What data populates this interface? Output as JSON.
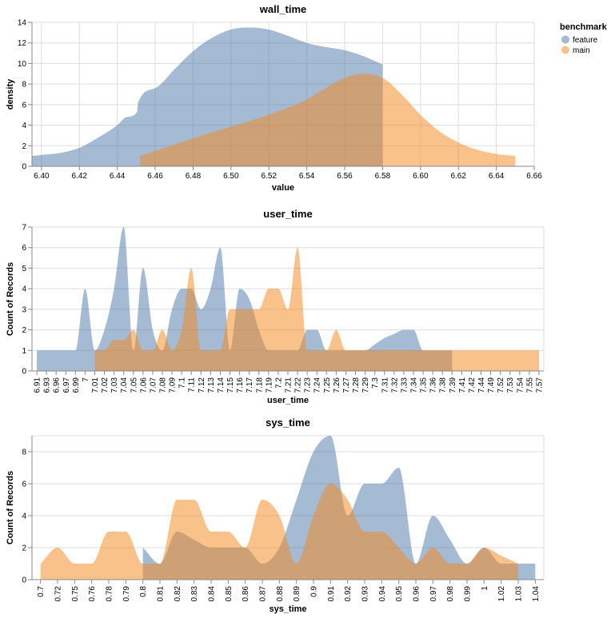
{
  "legend": {
    "title": "benchmark",
    "items": [
      {
        "label": "feature",
        "color": "#4c78a8"
      },
      {
        "label": "main",
        "color": "#f58518"
      }
    ]
  },
  "chart_data": [
    {
      "type": "area",
      "title": "wall_time",
      "xlabel": "value",
      "ylabel": "density",
      "xlim": [
        6.395,
        6.66
      ],
      "ylim": [
        0,
        14
      ],
      "xticks": [
        6.4,
        6.42,
        6.44,
        6.46,
        6.48,
        6.5,
        6.52,
        6.54,
        6.56,
        6.58,
        6.6,
        6.62,
        6.64,
        6.66
      ],
      "xtick_labels": [
        "6.40",
        "6.42",
        "6.44",
        "6.46",
        "6.48",
        "6.50",
        "6.52",
        "6.54",
        "6.56",
        "6.58",
        "6.60",
        "6.62",
        "6.64",
        "6.66"
      ],
      "yticks": [
        0,
        2,
        4,
        6,
        8,
        10,
        12,
        14
      ],
      "grid": true,
      "series": [
        {
          "name": "feature",
          "x": [
            6.395,
            6.4,
            6.41,
            6.42,
            6.43,
            6.44,
            6.445,
            6.4505,
            6.451,
            6.46,
            6.47,
            6.48,
            6.49,
            6.5,
            6.51,
            6.52,
            6.53,
            6.54,
            6.55,
            6.56,
            6.57,
            6.58
          ],
          "y": [
            1.0,
            1.1,
            1.3,
            1.8,
            2.8,
            4.0,
            4.8,
            5.3,
            6.2,
            7.6,
            9.4,
            11.2,
            12.5,
            13.3,
            13.5,
            13.3,
            12.7,
            12.0,
            11.6,
            11.3,
            10.7,
            9.9
          ]
        },
        {
          "name": "main",
          "x": [
            6.452,
            6.47,
            6.49,
            6.51,
            6.53,
            6.54,
            6.55,
            6.56,
            6.57,
            6.58,
            6.59,
            6.6,
            6.61,
            6.62,
            6.63,
            6.64,
            6.65
          ],
          "y": [
            1.0,
            2.1,
            3.3,
            4.4,
            5.7,
            6.5,
            7.6,
            8.6,
            9.0,
            8.6,
            7.0,
            5.0,
            3.4,
            2.3,
            1.6,
            1.2,
            1.0
          ]
        }
      ]
    },
    {
      "type": "area",
      "title": "user_time",
      "xlabel": "user_time",
      "ylabel": "Count of Records",
      "ylim": [
        0,
        7
      ],
      "yticks": [
        0,
        1,
        2,
        3,
        4,
        5,
        6,
        7
      ],
      "grid": true,
      "categories": [
        "6.91",
        "6.93",
        "6.96",
        "6.97",
        "6.99",
        "7",
        "7.01",
        "7.02",
        "7.03",
        "7.04",
        "7.05",
        "7.06",
        "7.07",
        "7.08",
        "7.09",
        "7.1",
        "7.11",
        "7.12",
        "7.13",
        "7.14",
        "7.15",
        "7.16",
        "7.17",
        "7.18",
        "7.19",
        "7.2",
        "7.21",
        "7.22",
        "7.23",
        "7.24",
        "7.25",
        "7.26",
        "7.27",
        "7.28",
        "7.29",
        "7.3",
        "7.31",
        "7.32",
        "7.33",
        "7.34",
        "7.35",
        "7.36",
        "7.38",
        "7.39",
        "7.41",
        "7.42",
        "7.44",
        "7.49",
        "7.52",
        "7.53",
        "7.54",
        "7.55",
        "7.57"
      ],
      "series": [
        {
          "name": "feature",
          "values": [
            1,
            1,
            1,
            1,
            1,
            4,
            1,
            2,
            4,
            7,
            1,
            5,
            2,
            1,
            3,
            4,
            4,
            3,
            4,
            6,
            1,
            4,
            3.5,
            2,
            1,
            1,
            1,
            1,
            2,
            2,
            1,
            1,
            1,
            1,
            1,
            1.3,
            1.6,
            1.8,
            2,
            2,
            1,
            1,
            1,
            1,
            null,
            null,
            null,
            null,
            null,
            null,
            null,
            null,
            null
          ]
        },
        {
          "name": "main",
          "values": [
            null,
            null,
            null,
            null,
            null,
            null,
            1,
            1,
            1.5,
            1.5,
            2,
            1,
            1,
            2,
            1,
            2,
            5,
            1,
            1,
            1,
            3,
            3,
            3,
            3,
            4,
            4,
            3,
            6,
            1,
            1,
            1,
            2,
            1,
            1,
            1,
            1,
            1,
            1,
            1,
            1,
            1,
            1,
            1,
            1,
            1,
            1,
            1,
            1,
            1,
            1,
            1,
            1,
            1
          ]
        }
      ]
    },
    {
      "type": "area",
      "title": "sys_time",
      "xlabel": "sys_time",
      "ylabel": "Count of Records",
      "ylim": [
        0,
        9
      ],
      "yticks": [
        0,
        2,
        4,
        6,
        8
      ],
      "grid": true,
      "categories": [
        "0.7",
        "0.72",
        "0.75",
        "0.76",
        "0.78",
        "0.79",
        "0.8",
        "0.81",
        "0.82",
        "0.83",
        "0.84",
        "0.85",
        "0.86",
        "0.87",
        "0.88",
        "0.89",
        "0.9",
        "0.91",
        "0.92",
        "0.93",
        "0.94",
        "0.95",
        "0.96",
        "0.97",
        "0.98",
        "0.99",
        "1",
        "1.02",
        "1.03",
        "1.04"
      ],
      "series": [
        {
          "name": "feature",
          "values": [
            null,
            null,
            null,
            null,
            null,
            null,
            2,
            1,
            3,
            2.5,
            2,
            2,
            2,
            1,
            2,
            5,
            8,
            9,
            4,
            6,
            6,
            7,
            1,
            4,
            2.5,
            1,
            2,
            1,
            1,
            1
          ]
        },
        {
          "name": "main",
          "values": [
            1,
            2,
            1,
            1,
            3,
            3,
            1,
            1,
            5,
            5,
            3,
            3,
            2,
            5,
            4,
            1,
            4,
            6,
            5,
            3,
            3,
            2,
            1,
            2,
            1,
            1,
            2,
            1.5,
            1,
            null
          ]
        }
      ]
    }
  ]
}
